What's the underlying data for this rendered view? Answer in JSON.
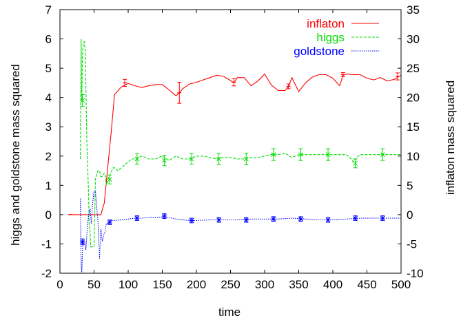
{
  "chart_data": {
    "type": "line",
    "xlabel": "time",
    "ylabel_left": "higgs and goldstone mass squared",
    "ylabel_right": "inflaton mass squared",
    "xlim": [
      0,
      500
    ],
    "ylim_left": [
      -2,
      7
    ],
    "ylim_right": [
      -10,
      35
    ],
    "x_ticks": [
      0,
      50,
      100,
      150,
      200,
      250,
      300,
      350,
      400,
      450,
      500
    ],
    "y_left_ticks": [
      -2,
      -1,
      0,
      1,
      2,
      3,
      4,
      5,
      6,
      7
    ],
    "y_right_ticks": [
      -10,
      -5,
      0,
      5,
      10,
      15,
      20,
      25,
      30,
      35
    ],
    "grid": false,
    "legend_position": "top-right",
    "series": [
      {
        "name": "inflaton",
        "axis": "right",
        "color": "#ff0000",
        "dash": "solid",
        "x": [
          15,
          30,
          45,
          55,
          60,
          65,
          70,
          75,
          80,
          90,
          100,
          110,
          120,
          130,
          140,
          150,
          160,
          170,
          175,
          180,
          190,
          200,
          210,
          220,
          230,
          240,
          250,
          255,
          260,
          270,
          280,
          290,
          300,
          310,
          320,
          330,
          335,
          340,
          350,
          360,
          370,
          380,
          390,
          400,
          410,
          415,
          420,
          430,
          440,
          450,
          460,
          470,
          480,
          490,
          500
        ],
        "y": [
          0,
          0,
          0,
          0,
          0,
          2,
          8,
          14,
          20.5,
          21.8,
          22.4,
          22,
          21.7,
          22,
          22.2,
          22.2,
          21.3,
          20.3,
          20.8,
          21.5,
          22.3,
          22.6,
          23,
          23.4,
          23.8,
          23.6,
          22.9,
          22.5,
          23.4,
          23.4,
          22,
          22.8,
          24,
          22.1,
          21.2,
          21.2,
          21.9,
          23.4,
          21,
          22.5,
          23.5,
          23.9,
          23.9,
          23.3,
          22,
          23.8,
          24,
          23.9,
          23.9,
          23.3,
          23,
          23.4,
          22.8,
          23.1,
          23.8
        ],
        "error_bars": [
          {
            "x": 15,
            "y": 0,
            "err": 0
          },
          {
            "x": 95,
            "y": 22.5,
            "err": 0.6
          },
          {
            "x": 175,
            "y": 20.8,
            "err": 1.8
          },
          {
            "x": 255,
            "y": 22.6,
            "err": 0.6
          },
          {
            "x": 335,
            "y": 21.9,
            "err": 0.4
          },
          {
            "x": 415,
            "y": 23.9,
            "err": 0.35
          },
          {
            "x": 495,
            "y": 23.6,
            "err": 0.6
          }
        ]
      },
      {
        "name": "higgs",
        "axis": "left",
        "color": "#00dd00",
        "dash": "dashed",
        "x": [
          30,
          31,
          32,
          33,
          34,
          35,
          36,
          37,
          38,
          39,
          40,
          41,
          42,
          43,
          44,
          45,
          48,
          50,
          52,
          54,
          56,
          58,
          60,
          62,
          64,
          66,
          68,
          70,
          72,
          74,
          76,
          78,
          80,
          85,
          90,
          95,
          100,
          105,
          110,
          115,
          120,
          130,
          140,
          150,
          160,
          170,
          180,
          190,
          200,
          210,
          220,
          230,
          240,
          250,
          260,
          270,
          280,
          290,
          300,
          310,
          320,
          330,
          340,
          350,
          360,
          370,
          380,
          390,
          400,
          410,
          420,
          425,
          430,
          435,
          440,
          450,
          460,
          470,
          480,
          490,
          500
        ],
        "y": [
          1.9,
          6.0,
          3.9,
          5.5,
          5.8,
          5.9,
          5.9,
          5.6,
          4.5,
          3.0,
          2.0,
          1.4,
          0.6,
          -0.5,
          -0.5,
          -1.1,
          -1.1,
          -1.1,
          1.2,
          1.4,
          1.5,
          1.5,
          1.3,
          1.3,
          1.4,
          1.4,
          1.0,
          1.2,
          1.3,
          1.4,
          1.5,
          1.6,
          1.6,
          1.5,
          1.6,
          1.7,
          1.8,
          1.9,
          1.9,
          1.95,
          2.0,
          1.9,
          1.9,
          2.0,
          1.85,
          2.0,
          1.9,
          1.9,
          2.0,
          2.0,
          1.95,
          1.9,
          1.95,
          1.95,
          1.9,
          1.9,
          1.95,
          1.95,
          2.0,
          2.05,
          2.05,
          2.1,
          1.95,
          2.05,
          2.05,
          2.05,
          2.05,
          2.05,
          2.05,
          2.05,
          2.05,
          1.95,
          1.8,
          1.95,
          2.05,
          2.05,
          2.05,
          2.05,
          2.05,
          2.05,
          2.05
        ],
        "error_bars": [
          {
            "x": 33,
            "y": 3.9,
            "err": 0.2
          },
          {
            "x": 73,
            "y": 1.2,
            "err": 0.15
          },
          {
            "x": 113,
            "y": 1.9,
            "err": 0.18
          },
          {
            "x": 153,
            "y": 1.85,
            "err": 0.18
          },
          {
            "x": 193,
            "y": 1.9,
            "err": 0.18
          },
          {
            "x": 233,
            "y": 1.9,
            "err": 0.2
          },
          {
            "x": 273,
            "y": 1.9,
            "err": 0.2
          },
          {
            "x": 313,
            "y": 2.05,
            "err": 0.2
          },
          {
            "x": 353,
            "y": 2.05,
            "err": 0.2
          },
          {
            "x": 393,
            "y": 2.05,
            "err": 0.2
          },
          {
            "x": 433,
            "y": 1.75,
            "err": 0.15
          },
          {
            "x": 473,
            "y": 2.05,
            "err": 0.2
          }
        ]
      },
      {
        "name": "goldstone",
        "axis": "left",
        "color": "#0000ff",
        "dash": "dotted",
        "x": [
          30,
          31,
          32,
          33,
          34,
          35,
          36,
          37,
          38,
          40,
          42,
          44,
          46,
          48,
          50,
          52,
          54,
          56,
          58,
          60,
          62,
          64,
          66,
          68,
          70,
          72,
          74,
          80,
          90,
          100,
          110,
          120,
          130,
          140,
          150,
          160,
          170,
          180,
          190,
          200,
          220,
          240,
          260,
          280,
          300,
          320,
          340,
          360,
          380,
          400,
          420,
          440,
          460,
          480,
          500
        ],
        "y": [
          0.55,
          -1.7,
          -2.0,
          -1.2,
          -0.9,
          -1.0,
          -0.9,
          -1.0,
          -1.2,
          -0.5,
          0.0,
          0.2,
          -0.3,
          0.4,
          0.8,
          0.8,
          0.2,
          -0.3,
          -1.5,
          -0.5,
          -0.9,
          -0.7,
          -0.6,
          -0.3,
          -0.3,
          -0.25,
          -0.2,
          -0.2,
          -0.18,
          -0.15,
          -0.12,
          -0.12,
          -0.1,
          -0.1,
          -0.08,
          -0.1,
          -0.15,
          -0.18,
          -0.2,
          -0.2,
          -0.18,
          -0.18,
          -0.18,
          -0.15,
          -0.15,
          -0.15,
          -0.12,
          -0.15,
          -0.18,
          -0.18,
          -0.15,
          -0.12,
          -0.12,
          -0.12,
          -0.12
        ],
        "error_bars": [
          {
            "x": 33,
            "y": -0.93,
            "err": 0.1
          },
          {
            "x": 73,
            "y": -0.26,
            "err": 0.08
          },
          {
            "x": 113,
            "y": -0.12,
            "err": 0.08
          },
          {
            "x": 153,
            "y": -0.05,
            "err": 0.08
          },
          {
            "x": 193,
            "y": -0.2,
            "err": 0.08
          },
          {
            "x": 233,
            "y": -0.18,
            "err": 0.08
          },
          {
            "x": 273,
            "y": -0.18,
            "err": 0.08
          },
          {
            "x": 313,
            "y": -0.15,
            "err": 0.08
          },
          {
            "x": 353,
            "y": -0.15,
            "err": 0.08
          },
          {
            "x": 393,
            "y": -0.18,
            "err": 0.08
          },
          {
            "x": 433,
            "y": -0.12,
            "err": 0.08
          },
          {
            "x": 473,
            "y": -0.12,
            "err": 0.08
          }
        ]
      }
    ]
  }
}
